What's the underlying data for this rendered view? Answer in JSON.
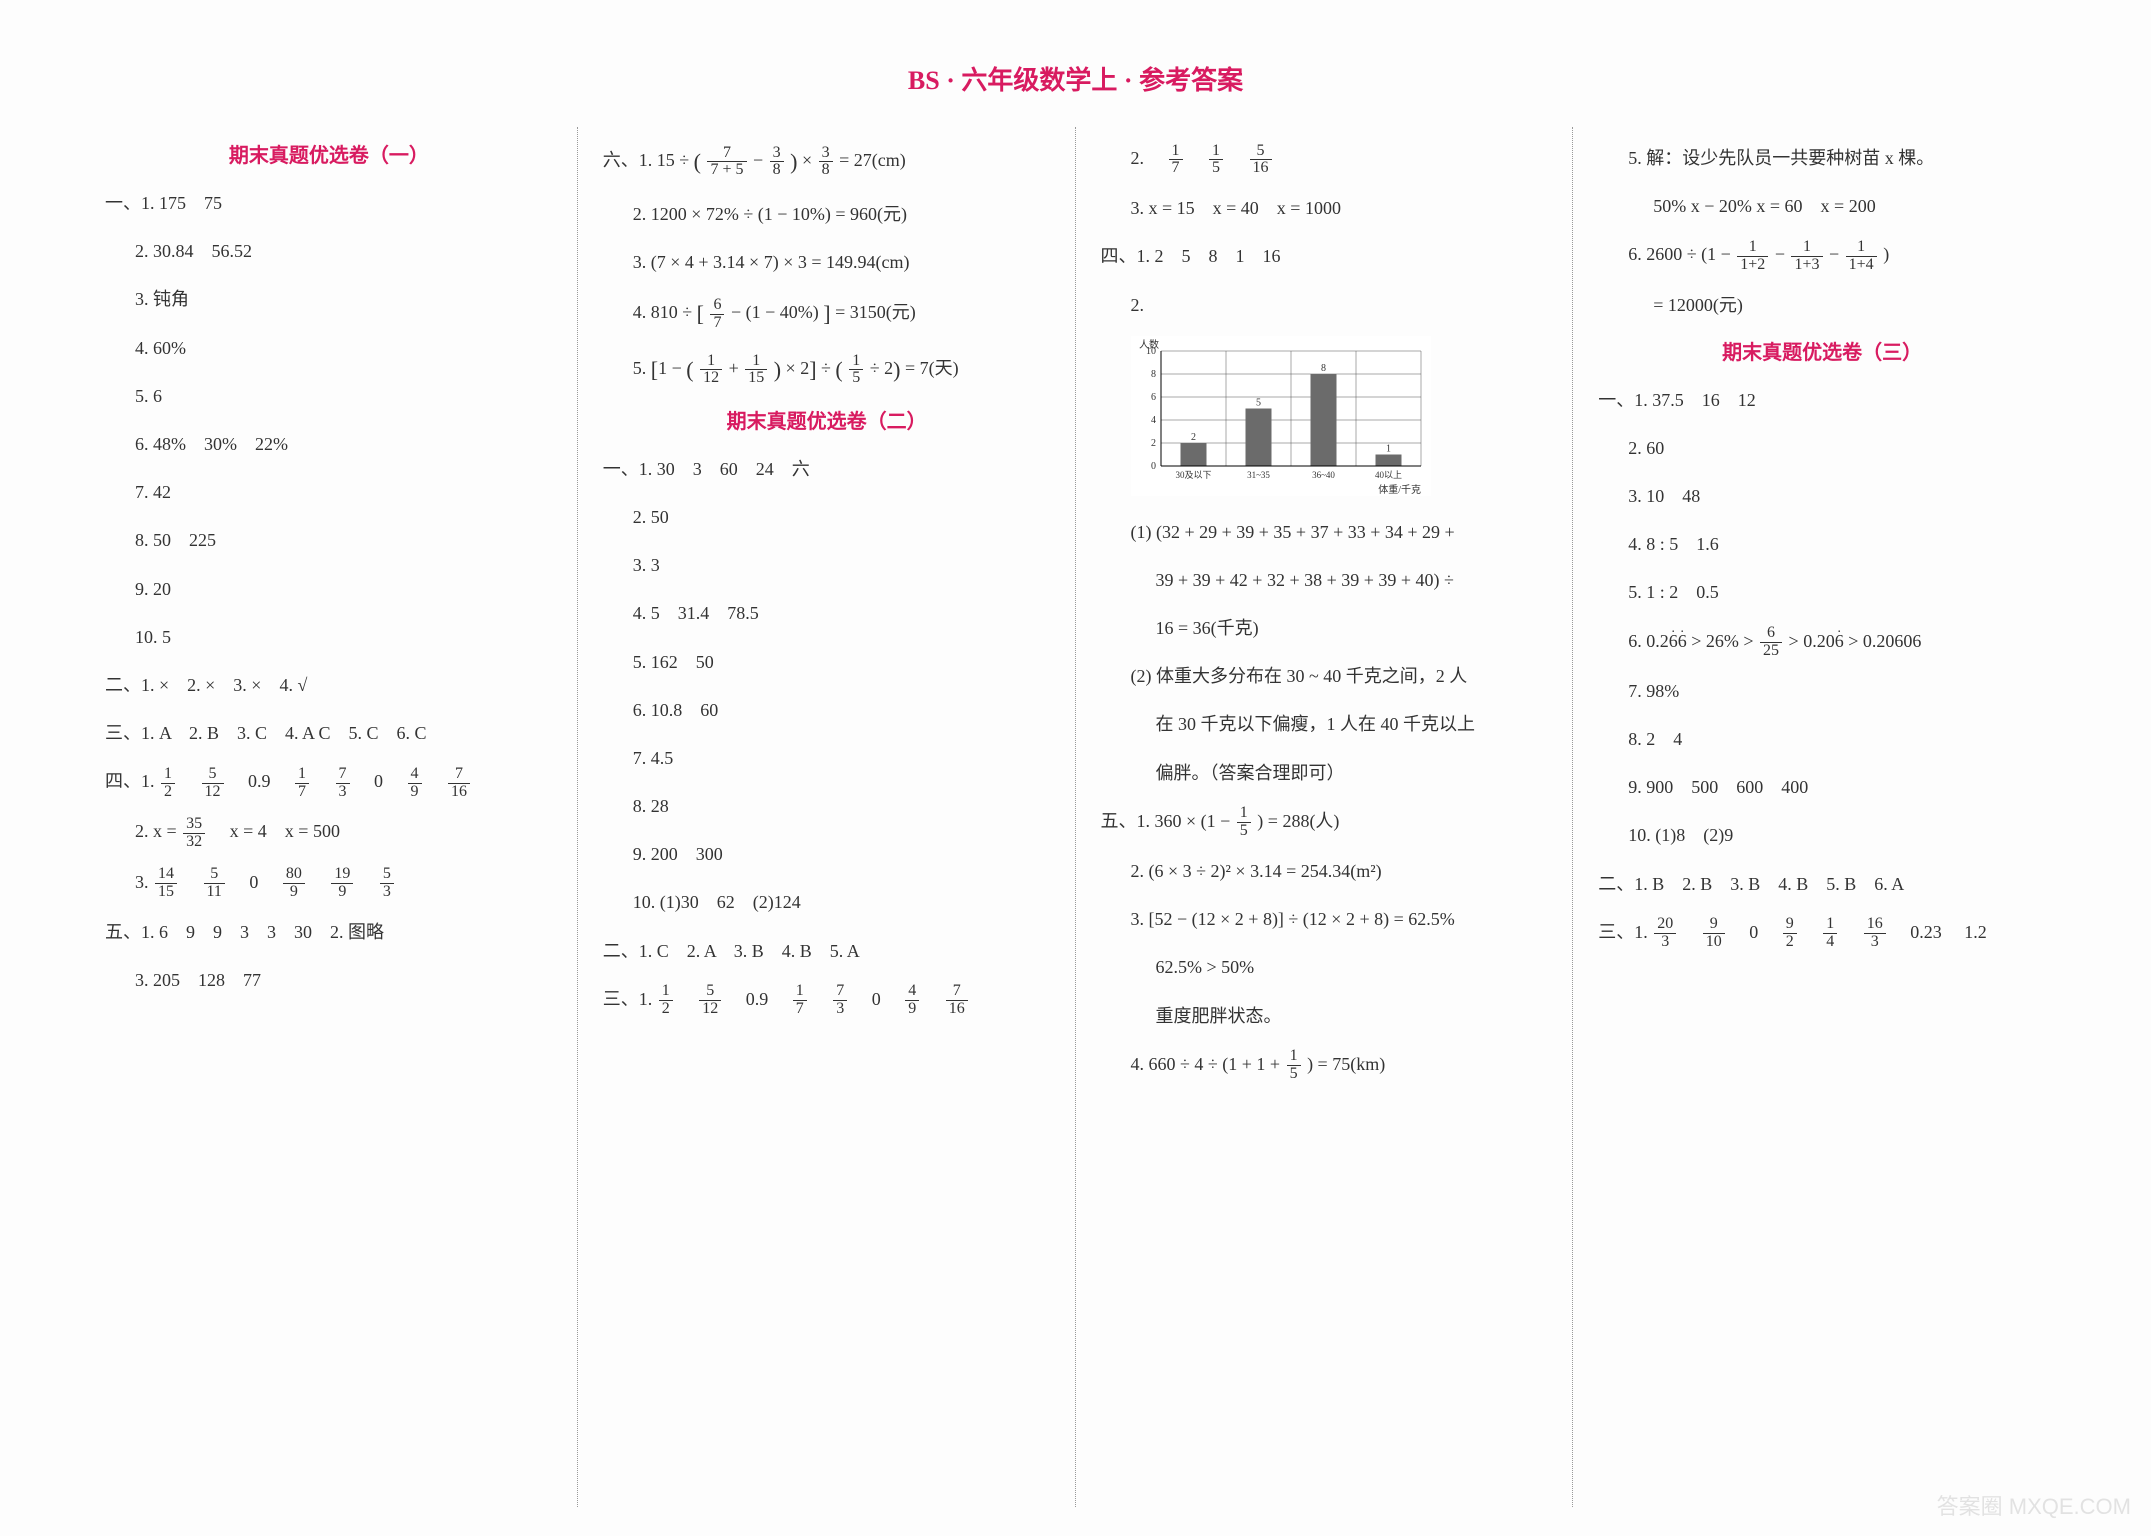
{
  "title": "BS · 六年级数学上 · 参考答案",
  "watermark": "答案圈 MXQE.COM",
  "col1": {
    "h1": "期末真题优选卷（一）",
    "s1_pre": "一、1. 175　75",
    "s1_2": "2. 30.84　56.52",
    "s1_3": "3. 钝角",
    "s1_4": "4. 60%",
    "s1_5": "5. 6",
    "s1_6": "6. 48%　30%　22%",
    "s1_7": "7. 42",
    "s1_8": "8. 50　225",
    "s1_9": "9. 20",
    "s1_10": "10. 5",
    "s2": "二、1. ×　2. ×　3. ×　4. √",
    "s3": "三、1. A　2. B　3. C　4. A C　5. C　6. C",
    "s4_pre": "四、1.",
    "s4_1_parts": [
      "1",
      "2",
      "5",
      "12",
      "0.9",
      "1",
      "7",
      "7",
      "3",
      "0",
      "4",
      "9",
      "7",
      "16"
    ],
    "s4_2_pre": "2. x =",
    "s4_2_a": [
      "35",
      "32"
    ],
    "s4_2_b": "　x = 4　x = 500",
    "s4_3_pre": "3.",
    "s4_3_parts": [
      "14",
      "15",
      "5",
      "11",
      "0",
      "80",
      "9",
      "19",
      "9",
      "5",
      "3"
    ],
    "s5": "五、1. 6　9　9　3　3　30　2. 图略",
    "s5_2": "3. 205　128　77"
  },
  "col2": {
    "s6_pre": "六、1. 15 ÷ ",
    "s6_1_a": [
      "7",
      "7 + 5"
    ],
    "s6_1_mid": " − ",
    "s6_1_b": [
      "3",
      "8"
    ],
    "s6_1_mid2": " × ",
    "s6_1_c": [
      "3",
      "8"
    ],
    "s6_1_tail": " = 27(cm)",
    "s6_2": "2. 1200 × 72% ÷ (1 − 10%) = 960(元)",
    "s6_3": "3. (7 × 4 + 3.14 × 7) × 3 = 149.94(cm)",
    "s6_4_pre": "4. 810 ÷ ",
    "s6_4_a": [
      "6",
      "7"
    ],
    "s6_4_mid": " − (1 − 40%) ",
    "s6_4_tail": " = 3150(元)",
    "s6_5_pre": "5. ",
    "s6_5_a": [
      "1",
      "12"
    ],
    "s6_5_b": [
      "1",
      "15"
    ],
    "s6_5_c": [
      "1",
      "5"
    ],
    "s6_5_tail": " = 7(天)",
    "h2": "期末真题优选卷（二）",
    "b1_1": "一、1. 30　3　60　24　六",
    "b1_2": "2. 50",
    "b1_3": "3. 3",
    "b1_4": "4. 5　31.4　78.5",
    "b1_5": "5. 162　50",
    "b1_6": "6. 10.8　60",
    "b1_7": "7. 4.5",
    "b1_8": "8. 28",
    "b1_9": "9. 200　300",
    "b1_10": "10. (1)30　62　(2)124",
    "b2": "二、1. C　2. A　3. B　4. B　5. A",
    "b3_pre": "三、1.",
    "b3_parts": [
      "1",
      "2",
      "5",
      "12",
      "0.9",
      "1",
      "7",
      "7",
      "3",
      "0",
      "4",
      "9",
      "7",
      "16"
    ]
  },
  "col3": {
    "c_2_pre": "2.",
    "c_2_a": [
      "1",
      "7"
    ],
    "c_2_b": [
      "1",
      "5"
    ],
    "c_2_c": [
      "5",
      "16"
    ],
    "c_3": "3. x = 15　x = 40　x = 1000",
    "c4": "四、1. 2　5　8　1　16",
    "chart_label": "2.",
    "chart": {
      "type": "bar",
      "categories": [
        "30及以下",
        "31~35",
        "36~40",
        "40以上"
      ],
      "values": [
        2,
        5,
        8,
        1
      ],
      "bar_color": "#6b6b6b",
      "grid_color": "#555555",
      "background_color": "#ffffff",
      "ylabel": "人数",
      "xlabel": "体重/千克",
      "ylim": [
        0,
        10
      ],
      "ytick_step": 2,
      "bar_width": 0.4,
      "label_fontsize": 10
    },
    "c4_2a": "(1) (32 + 29 + 39 + 35 + 37 + 33 + 34 + 29 +",
    "c4_2b": "39 + 39 + 42 + 32 + 38 + 39 + 39 + 40) ÷",
    "c4_2c": "16 = 36(千克)",
    "c4_3a": "(2) 体重大多分布在 30 ~ 40 千克之间，2 人",
    "c4_3b": "在 30 千克以下偏瘦，1 人在 40 千克以上",
    "c4_3c": "偏胖。（答案合理即可）",
    "c5_1_pre": "五、1. 360 × (1 − ",
    "c5_1_a": [
      "1",
      "5"
    ],
    "c5_1_tail": ") = 288(人)",
    "c5_2": "2. (6 × 3 ÷ 2)² × 3.14 = 254.34(m²)",
    "c5_3a": "3. [52 − (12 × 2 + 8)] ÷ (12 × 2 + 8) = 62.5%",
    "c5_3b": "62.5% > 50%",
    "c5_3c": "重度肥胖状态。",
    "c5_4_pre": "4. 660 ÷ 4 ÷ (1 + 1 + ",
    "c5_4_a": [
      "1",
      "5"
    ],
    "c5_4_tail": ") = 75(km)"
  },
  "col4": {
    "d_5a": "5. 解：设少先队员一共要种树苗 x 棵。",
    "d_5b": "50% x − 20% x = 60　x = 200",
    "d_6_pre": "6. 2600 ÷ (1 − ",
    "d_6_a": [
      "1",
      "1+2"
    ],
    "d_6_b": [
      "1",
      "1+3"
    ],
    "d_6_c": [
      "1",
      "1+4"
    ],
    "d_6_tail": ")",
    "d_6_res": "= 12000(元)",
    "h3": "期末真题优选卷（三）",
    "e1_1": "一、1. 37.5　16　12",
    "e1_2": "2. 60",
    "e1_3": "3. 10　48",
    "e1_4": "4. 8 : 5　1.6",
    "e1_5": "5. 1 : 2　0.5",
    "e1_6_pre": "6. 0.2",
    "e1_6_a": "6",
    "e1_6_b": "6",
    "e1_6_mid": " > 26% > ",
    "e1_6_frac": [
      "6",
      "25"
    ],
    "e1_6_mid2": " > 0.20",
    "e1_6_c": "6",
    "e1_6_tail": " > 0.20606",
    "e1_7": "7. 98%",
    "e1_8": "8. 2　4",
    "e1_9": "9. 900　500　600　400",
    "e1_10": "10. (1)8　(2)9",
    "e2": "二、1. B　2. B　3. B　4. B　5. B　6. A",
    "e3_pre": "三、1.",
    "e3_parts": [
      "20",
      "3",
      "9",
      "10",
      "0",
      "9",
      "2",
      "1",
      "4",
      "16",
      "3",
      "0.23",
      "1.2"
    ]
  }
}
